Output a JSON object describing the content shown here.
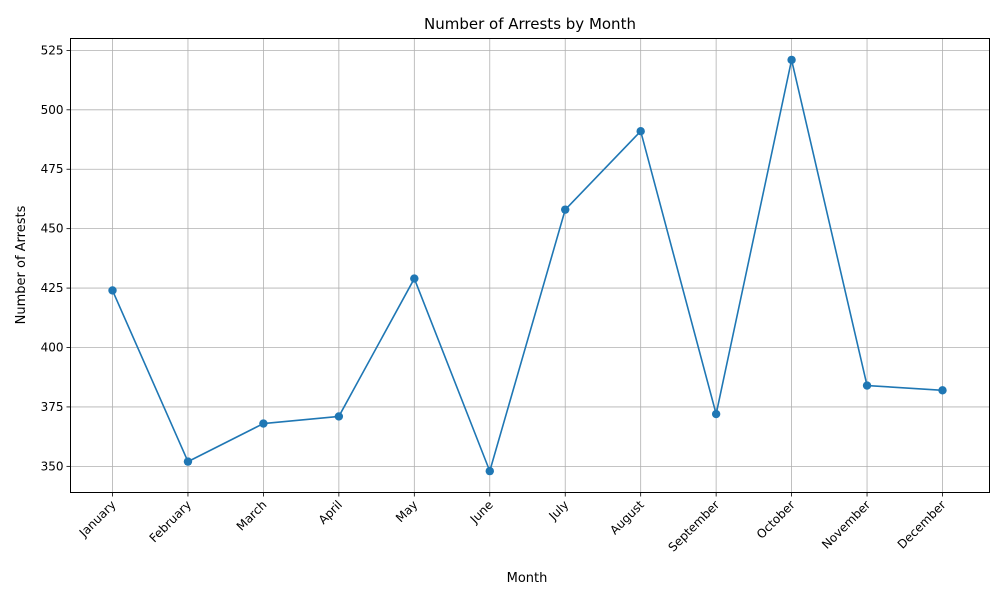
{
  "chart_data": {
    "type": "line",
    "title": "Number of Arrests by Month",
    "xlabel": "Month",
    "ylabel": "Number of Arrests",
    "categories": [
      "January",
      "February",
      "March",
      "April",
      "May",
      "June",
      "July",
      "August",
      "September",
      "October",
      "November",
      "December"
    ],
    "series": [
      {
        "values": [
          424,
          352,
          368,
          371,
          429,
          348,
          458,
          491,
          372,
          521,
          384,
          382
        ],
        "color": "#1f77b4",
        "marker": "circle"
      }
    ],
    "yticks": [
      350,
      375,
      400,
      425,
      450,
      475,
      500,
      525
    ],
    "ylim": [
      339,
      530
    ],
    "grid": true,
    "legend": "none"
  }
}
